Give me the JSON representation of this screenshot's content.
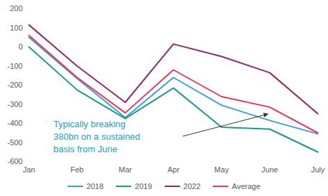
{
  "chart_data": {
    "type": "line",
    "categories": [
      "Jan",
      "Feb",
      "Mar",
      "Apr",
      "May",
      "June",
      "July"
    ],
    "series": [
      {
        "name": "2018",
        "color": "#3a9fd6",
        "values": [
          50,
          -165,
          -370,
          -160,
          -305,
          -385,
          -455
        ]
      },
      {
        "name": "2019",
        "color": "#1a9a86",
        "values": [
          0,
          -225,
          -375,
          -215,
          -420,
          -430,
          -550
        ]
      },
      {
        "name": "2022",
        "color": "#8b2a6b",
        "values": [
          115,
          -100,
          -290,
          15,
          -50,
          -135,
          -350
        ]
      },
      {
        "name": "Average",
        "color": "#e8355a",
        "values": [
          60,
          -160,
          -345,
          -120,
          -260,
          -315,
          -450
        ]
      }
    ],
    "ylim": [
      -600,
      200
    ],
    "yticks": [
      -600,
      -500,
      -400,
      -300,
      -200,
      -100,
      0,
      100,
      200
    ],
    "grid": false,
    "legend": "bottom",
    "annotations": [
      {
        "text": "Typically breaking\n380bn on a sustained\nbasis from June"
      }
    ]
  }
}
